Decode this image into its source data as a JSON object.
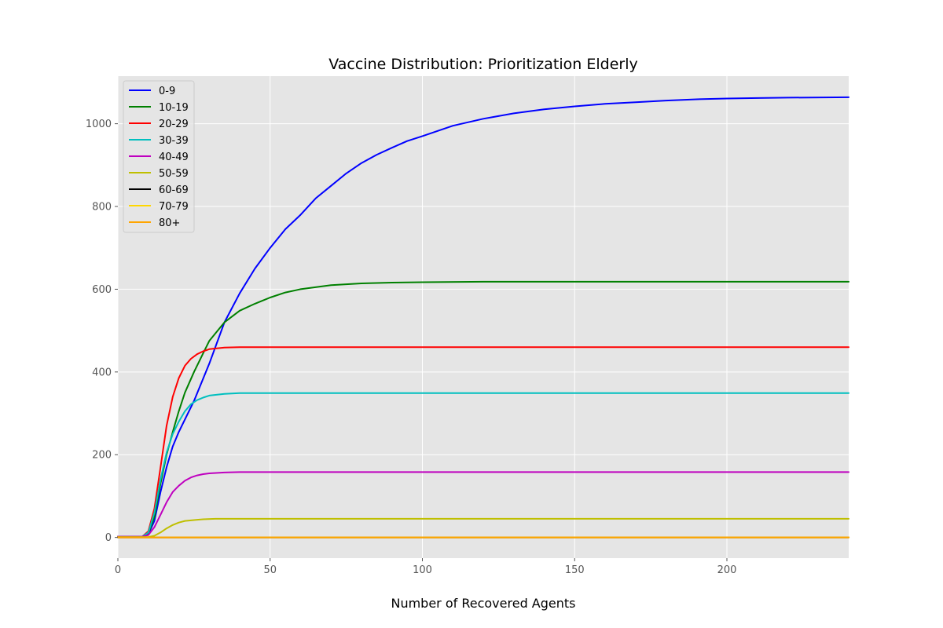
{
  "chart_data": {
    "type": "line",
    "title": "Vaccine Distribution: Prioritization Elderly",
    "xlabel": "Number of Recovered Agents",
    "ylabel": "",
    "xlim": [
      0,
      240
    ],
    "ylim": [
      -50,
      1115
    ],
    "x_ticks": [
      0,
      50,
      100,
      150,
      200
    ],
    "y_ticks": [
      0,
      200,
      400,
      600,
      800,
      1000
    ],
    "grid": true,
    "legend_position": "top-left",
    "style": {
      "background": "#e5e5e5",
      "grid_color": "#ffffff"
    },
    "series": [
      {
        "name": "0-9",
        "color": "#0000ff",
        "points": [
          [
            0,
            2
          ],
          [
            8,
            2
          ],
          [
            10,
            8
          ],
          [
            12,
            40
          ],
          [
            14,
            110
          ],
          [
            16,
            170
          ],
          [
            18,
            220
          ],
          [
            20,
            255
          ],
          [
            25,
            330
          ],
          [
            30,
            420
          ],
          [
            35,
            520
          ],
          [
            40,
            590
          ],
          [
            45,
            650
          ],
          [
            50,
            700
          ],
          [
            55,
            745
          ],
          [
            60,
            780
          ],
          [
            65,
            820
          ],
          [
            70,
            850
          ],
          [
            75,
            880
          ],
          [
            80,
            905
          ],
          [
            85,
            925
          ],
          [
            90,
            942
          ],
          [
            95,
            958
          ],
          [
            100,
            970
          ],
          [
            110,
            995
          ],
          [
            120,
            1012
          ],
          [
            130,
            1025
          ],
          [
            140,
            1035
          ],
          [
            150,
            1042
          ],
          [
            160,
            1048
          ],
          [
            170,
            1052
          ],
          [
            180,
            1056
          ],
          [
            190,
            1059
          ],
          [
            200,
            1061
          ],
          [
            210,
            1062
          ],
          [
            220,
            1063
          ],
          [
            240,
            1064
          ]
        ]
      },
      {
        "name": "10-19",
        "color": "#008000",
        "points": [
          [
            0,
            2
          ],
          [
            8,
            2
          ],
          [
            10,
            10
          ],
          [
            12,
            50
          ],
          [
            14,
            130
          ],
          [
            16,
            200
          ],
          [
            18,
            255
          ],
          [
            20,
            305
          ],
          [
            22,
            350
          ],
          [
            25,
            400
          ],
          [
            28,
            445
          ],
          [
            30,
            475
          ],
          [
            35,
            520
          ],
          [
            40,
            548
          ],
          [
            45,
            565
          ],
          [
            50,
            580
          ],
          [
            55,
            592
          ],
          [
            60,
            600
          ],
          [
            70,
            610
          ],
          [
            80,
            614
          ],
          [
            90,
            616
          ],
          [
            100,
            617
          ],
          [
            120,
            618
          ],
          [
            150,
            618
          ],
          [
            200,
            618
          ],
          [
            240,
            618
          ]
        ]
      },
      {
        "name": "20-29",
        "color": "#ff0000",
        "points": [
          [
            0,
            2
          ],
          [
            8,
            2
          ],
          [
            10,
            15
          ],
          [
            12,
            70
          ],
          [
            14,
            170
          ],
          [
            16,
            270
          ],
          [
            18,
            340
          ],
          [
            20,
            385
          ],
          [
            22,
            415
          ],
          [
            24,
            432
          ],
          [
            26,
            443
          ],
          [
            28,
            450
          ],
          [
            30,
            455
          ],
          [
            35,
            459
          ],
          [
            40,
            460
          ],
          [
            50,
            460
          ],
          [
            100,
            460
          ],
          [
            150,
            460
          ],
          [
            200,
            460
          ],
          [
            240,
            460
          ]
        ]
      },
      {
        "name": "30-39",
        "color": "#00bfbf",
        "points": [
          [
            0,
            2
          ],
          [
            8,
            2
          ],
          [
            10,
            12
          ],
          [
            12,
            60
          ],
          [
            14,
            140
          ],
          [
            16,
            205
          ],
          [
            18,
            250
          ],
          [
            20,
            280
          ],
          [
            22,
            305
          ],
          [
            24,
            322
          ],
          [
            26,
            332
          ],
          [
            28,
            338
          ],
          [
            30,
            343
          ],
          [
            35,
            347
          ],
          [
            40,
            349
          ],
          [
            50,
            349
          ],
          [
            100,
            349
          ],
          [
            150,
            349
          ],
          [
            200,
            349
          ],
          [
            240,
            349
          ]
        ]
      },
      {
        "name": "40-49",
        "color": "#bf00bf",
        "points": [
          [
            0,
            2
          ],
          [
            8,
            2
          ],
          [
            10,
            6
          ],
          [
            12,
            25
          ],
          [
            14,
            55
          ],
          [
            16,
            85
          ],
          [
            18,
            110
          ],
          [
            20,
            125
          ],
          [
            22,
            137
          ],
          [
            24,
            145
          ],
          [
            26,
            150
          ],
          [
            28,
            153
          ],
          [
            30,
            155
          ],
          [
            35,
            157
          ],
          [
            40,
            158
          ],
          [
            50,
            158
          ],
          [
            100,
            158
          ],
          [
            150,
            158
          ],
          [
            200,
            158
          ],
          [
            240,
            158
          ]
        ]
      },
      {
        "name": "50-59",
        "color": "#bfbf00",
        "points": [
          [
            0,
            1
          ],
          [
            10,
            1
          ],
          [
            12,
            4
          ],
          [
            14,
            12
          ],
          [
            16,
            22
          ],
          [
            18,
            30
          ],
          [
            20,
            36
          ],
          [
            22,
            40
          ],
          [
            25,
            42
          ],
          [
            28,
            44
          ],
          [
            32,
            45
          ],
          [
            40,
            45
          ],
          [
            100,
            45
          ],
          [
            150,
            45
          ],
          [
            200,
            45
          ],
          [
            240,
            45
          ]
        ]
      },
      {
        "name": "60-69",
        "color": "#000000",
        "points": [
          [
            0,
            0
          ],
          [
            240,
            0
          ]
        ]
      },
      {
        "name": "70-79",
        "color": "#ffd700",
        "points": [
          [
            0,
            0
          ],
          [
            240,
            0
          ]
        ]
      },
      {
        "name": "80+",
        "color": "#ffa500",
        "points": [
          [
            0,
            0
          ],
          [
            240,
            0
          ]
        ]
      }
    ]
  }
}
